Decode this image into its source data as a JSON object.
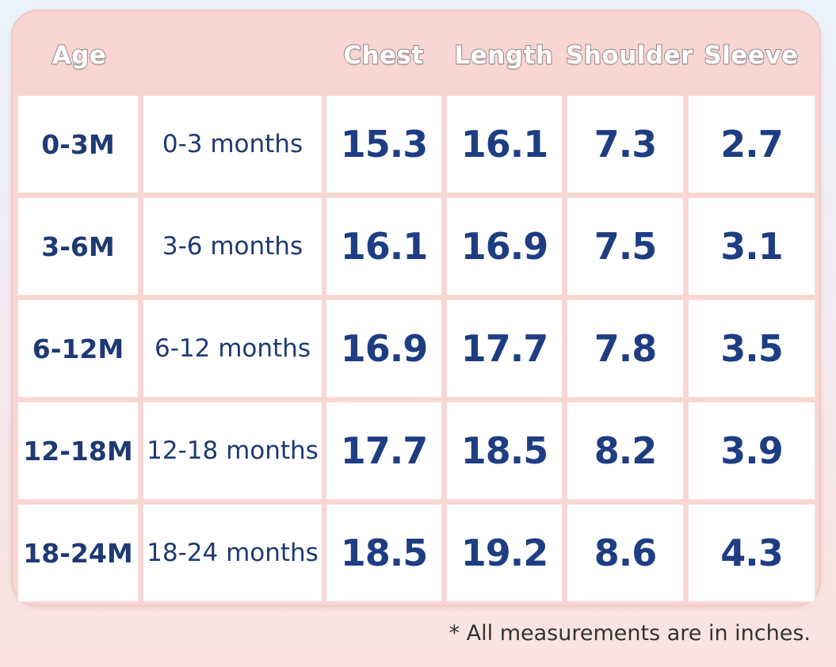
{
  "headers": {
    "age": "Age",
    "chest": "Chest",
    "length": "Length",
    "shoulder": "Shoulder",
    "sleeve": "Sleeve"
  },
  "rows": [
    {
      "age": "0-3M",
      "months": "0-3 months",
      "chest": "15.3",
      "length": "16.1",
      "shoulder": "7.3",
      "sleeve": "2.7"
    },
    {
      "age": "3-6M",
      "months": "3-6 months",
      "chest": "16.1",
      "length": "16.9",
      "shoulder": "7.5",
      "sleeve": "3.1"
    },
    {
      "age": "6-12M",
      "months": "6-12 months",
      "chest": "16.9",
      "length": "17.7",
      "shoulder": "7.8",
      "sleeve": "3.5"
    },
    {
      "age": "12-18M",
      "months": "12-18 months",
      "chest": "17.7",
      "length": "18.5",
      "shoulder": "8.2",
      "sleeve": "3.9"
    },
    {
      "age": "18-24M",
      "months": "18-24 months",
      "chest": "18.5",
      "length": "19.2",
      "shoulder": "8.6",
      "sleeve": "4.3"
    }
  ],
  "footnote": "* All measurements are in inches.",
  "colors": {
    "card_background": "#f9d6d2",
    "cell_background": "#ffffff",
    "text_navy": "#1e3d82",
    "header_text": "#ffffff"
  }
}
